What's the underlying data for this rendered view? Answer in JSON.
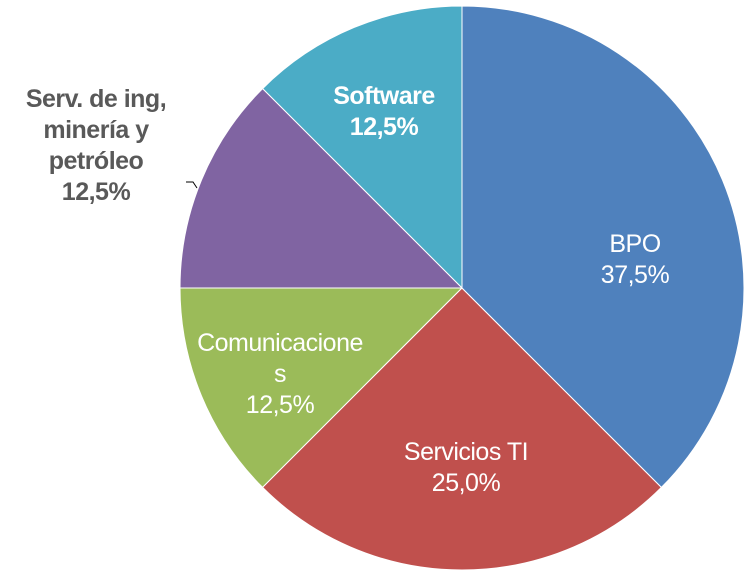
{
  "chart_data": {
    "type": "pie",
    "categories": [
      "BPO",
      "Servicios TI",
      "Comunicaciones",
      "Serv. de ing, minería y petróleo",
      "Software"
    ],
    "values": [
      37.5,
      25.0,
      12.5,
      12.5,
      12.5
    ],
    "value_labels": [
      "37,5%",
      "25,0%",
      "12,5%",
      "12,5%",
      "12,5%"
    ],
    "colors": [
      "#4f81bd",
      "#c0504d",
      "#9bbb59",
      "#8064a2",
      "#4bacc6"
    ]
  }
}
